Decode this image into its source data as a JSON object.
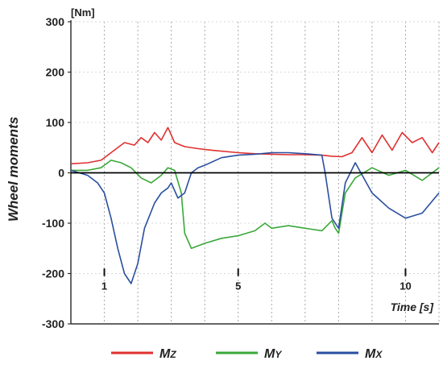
{
  "chart_data": {
    "type": "line",
    "ylabel": "Wheel moments",
    "y_unit": "[Nm]",
    "xlabel": "Time [s]",
    "xlim": [
      0,
      11
    ],
    "ylim": [
      -300,
      300
    ],
    "y_ticks": [
      -300,
      -200,
      -100,
      0,
      100,
      200,
      300
    ],
    "x_ticks": [
      1,
      5,
      10
    ],
    "grid": true,
    "legend_position": "bottom",
    "series": [
      {
        "name": "MZ",
        "name_main": "M",
        "name_sub": "Z",
        "color": "#e03030",
        "x": [
          0,
          0.5,
          0.9,
          1.2,
          1.6,
          1.9,
          2.1,
          2.3,
          2.5,
          2.7,
          2.9,
          3.1,
          3.4,
          3.8,
          4.2,
          5.0,
          5.5,
          6.0,
          6.5,
          7.0,
          7.5,
          7.8,
          8.1,
          8.4,
          8.7,
          9.0,
          9.3,
          9.6,
          9.9,
          10.2,
          10.5,
          10.8,
          11.0
        ],
        "y": [
          18,
          20,
          25,
          40,
          60,
          55,
          70,
          60,
          80,
          65,
          90,
          60,
          52,
          48,
          45,
          40,
          38,
          37,
          36,
          36,
          35,
          33,
          32,
          40,
          70,
          40,
          75,
          45,
          80,
          60,
          70,
          40,
          60
        ]
      },
      {
        "name": "MY",
        "name_main": "M",
        "name_sub": "Y",
        "color": "#3aa83a",
        "x": [
          0,
          0.5,
          0.9,
          1.2,
          1.5,
          1.8,
          2.1,
          2.4,
          2.7,
          2.9,
          3.1,
          3.3,
          3.4,
          3.6,
          4.0,
          4.5,
          5.0,
          5.5,
          5.8,
          6.0,
          6.5,
          7.0,
          7.5,
          7.8,
          7.9,
          8.0,
          8.2,
          8.5,
          9.0,
          9.5,
          10.0,
          10.5,
          11.0
        ],
        "y": [
          5,
          5,
          10,
          25,
          20,
          10,
          -10,
          -20,
          -5,
          10,
          5,
          -40,
          -120,
          -150,
          -140,
          -130,
          -125,
          -115,
          -100,
          -110,
          -105,
          -110,
          -115,
          -95,
          -110,
          -120,
          -40,
          -10,
          10,
          -5,
          5,
          -15,
          10
        ]
      },
      {
        "name": "MX",
        "name_main": "M",
        "name_sub": "X",
        "color": "#2a4fa0",
        "x": [
          0,
          0.5,
          0.8,
          1.0,
          1.2,
          1.4,
          1.6,
          1.8,
          2.0,
          2.2,
          2.5,
          2.7,
          2.9,
          3.0,
          3.2,
          3.4,
          3.6,
          3.8,
          4.0,
          4.5,
          5.0,
          5.5,
          6.0,
          6.5,
          7.0,
          7.5,
          7.6,
          7.8,
          8.0,
          8.2,
          8.5,
          9.0,
          9.5,
          10.0,
          10.5,
          11.0
        ],
        "y": [
          5,
          -5,
          -20,
          -40,
          -90,
          -150,
          -200,
          -220,
          -180,
          -110,
          -60,
          -40,
          -30,
          -20,
          -50,
          -40,
          0,
          10,
          15,
          30,
          35,
          37,
          40,
          40,
          38,
          35,
          0,
          -90,
          -110,
          -20,
          20,
          -40,
          -70,
          -90,
          -80,
          -40
        ]
      }
    ]
  }
}
